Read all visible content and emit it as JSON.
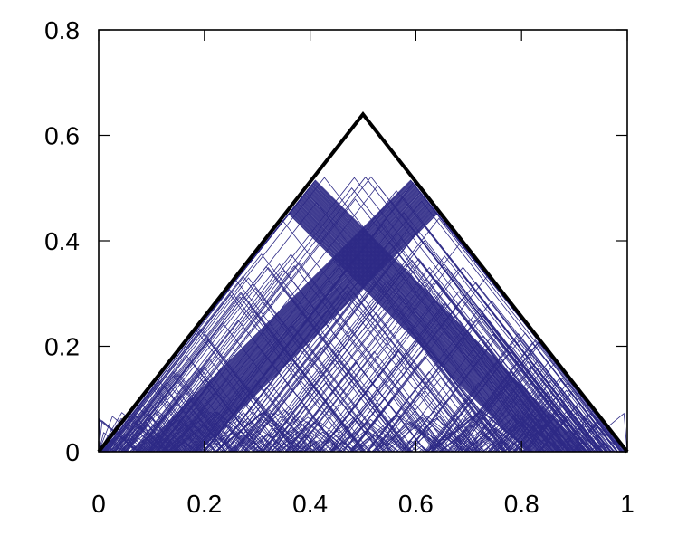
{
  "chart_data": {
    "type": "line",
    "title": "",
    "xlabel": "",
    "ylabel": "",
    "xlim": [
      0,
      1
    ],
    "ylim": [
      0,
      0.8
    ],
    "x_ticks": [
      "0",
      "0.2",
      "0.4",
      "0.6",
      "0.8",
      "1"
    ],
    "x_tick_values": [
      0,
      0.2,
      0.4,
      0.6,
      0.8,
      1
    ],
    "y_ticks": [
      "0",
      "0.2",
      "0.4",
      "0.6",
      "0.8"
    ],
    "y_tick_values": [
      0,
      0.2,
      0.4,
      0.6,
      0.8
    ],
    "grid": false,
    "legend": "none",
    "series": [
      {
        "style": "thick black outline",
        "color": "#000000",
        "x": [
          0,
          0.5,
          1
        ],
        "y": [
          0,
          0.64,
          0
        ]
      },
      {
        "style": "dense family of thin peaked lines (tent maps)",
        "color": "#2e2a86",
        "peak_height_range": [
          0.0,
          0.53
        ],
        "left_envelope": [
          [
            0,
            0
          ],
          [
            0.41,
            0.525
          ]
        ],
        "right_envelope": [
          [
            0.59,
            0.52
          ],
          [
            1,
            0
          ]
        ],
        "inner_notch": [
          [
            0.41,
            0.525
          ],
          [
            0.51,
            0.46
          ],
          [
            0.59,
            0.52
          ]
        ]
      }
    ]
  }
}
